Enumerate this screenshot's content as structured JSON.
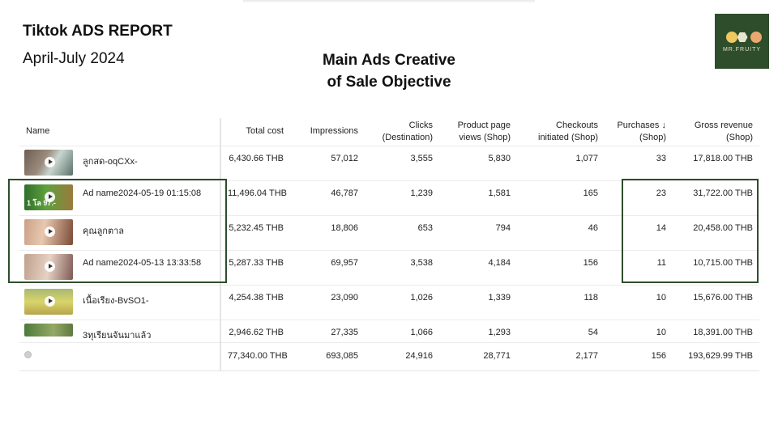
{
  "report": {
    "title": "Tiktok ADS REPORT",
    "period": "April-July 2024",
    "heading_line1": "Main Ads Creative",
    "heading_line2": "of Sale Objective"
  },
  "logo": {
    "text": "MR.FRUITY",
    "background": "#2e4d2b"
  },
  "columns": {
    "name": "Name",
    "total_cost": "Total cost",
    "impressions": "Impressions",
    "clicks_1": "Clicks",
    "clicks_2": "(Destination)",
    "ppv_1": "Product page",
    "ppv_2": "views (Shop)",
    "checkouts_1": "Checkouts",
    "checkouts_2": "initiated (Shop)",
    "purchases_1": "Purchases",
    "purchases_sort": "↓",
    "purchases_2": "(Shop)",
    "revenue_1": "Gross revenue",
    "revenue_2": "(Shop)"
  },
  "rows": [
    {
      "name": "ลูกสด-oqCXx-",
      "thumb_label": "",
      "total_cost": "6,430.66 THB",
      "impressions": "57,012",
      "clicks": "3,555",
      "product_page_views": "5,830",
      "checkouts": "1,077",
      "purchases": "33",
      "gross_revenue": "17,818.00 THB"
    },
    {
      "name": "Ad name2024-05-19 01:15:08",
      "thumb_label": "1 โล 97.-",
      "total_cost": "11,496.04 THB",
      "impressions": "46,787",
      "clicks": "1,239",
      "product_page_views": "1,581",
      "checkouts": "165",
      "purchases": "23",
      "gross_revenue": "31,722.00 THB"
    },
    {
      "name": "คุณลูกตาล",
      "thumb_label": "",
      "total_cost": "5,232.45 THB",
      "impressions": "18,806",
      "clicks": "653",
      "product_page_views": "794",
      "checkouts": "46",
      "purchases": "14",
      "gross_revenue": "20,458.00 THB"
    },
    {
      "name": "Ad name2024-05-13 13:33:58",
      "thumb_label": "",
      "total_cost": "5,287.33 THB",
      "impressions": "69,957",
      "clicks": "3,538",
      "product_page_views": "4,184",
      "checkouts": "156",
      "purchases": "11",
      "gross_revenue": "10,715.00 THB"
    },
    {
      "name": "เนื้อเรียง-BvSO1-",
      "thumb_label": "",
      "total_cost": "4,254.38 THB",
      "impressions": "23,090",
      "clicks": "1,026",
      "product_page_views": "1,339",
      "checkouts": "118",
      "purchases": "10",
      "gross_revenue": "15,676.00 THB"
    },
    {
      "name": "3ทุเรียนจันมาแล้ว",
      "thumb_label": "",
      "total_cost": "2,946.62 THB",
      "impressions": "27,335",
      "clicks": "1,066",
      "product_page_views": "1,293",
      "checkouts": "54",
      "purchases": "10",
      "gross_revenue": "18,391.00 THB"
    }
  ],
  "totals": {
    "total_cost": "77,340.00 THB",
    "impressions": "693,085",
    "clicks": "24,916",
    "product_page_views": "28,771",
    "checkouts": "2,177",
    "purchases": "156",
    "gross_revenue": "193,629.99 THB"
  },
  "colors": {
    "accent": "#2e4d2b",
    "text": "#222222",
    "grid": "#ececec"
  }
}
